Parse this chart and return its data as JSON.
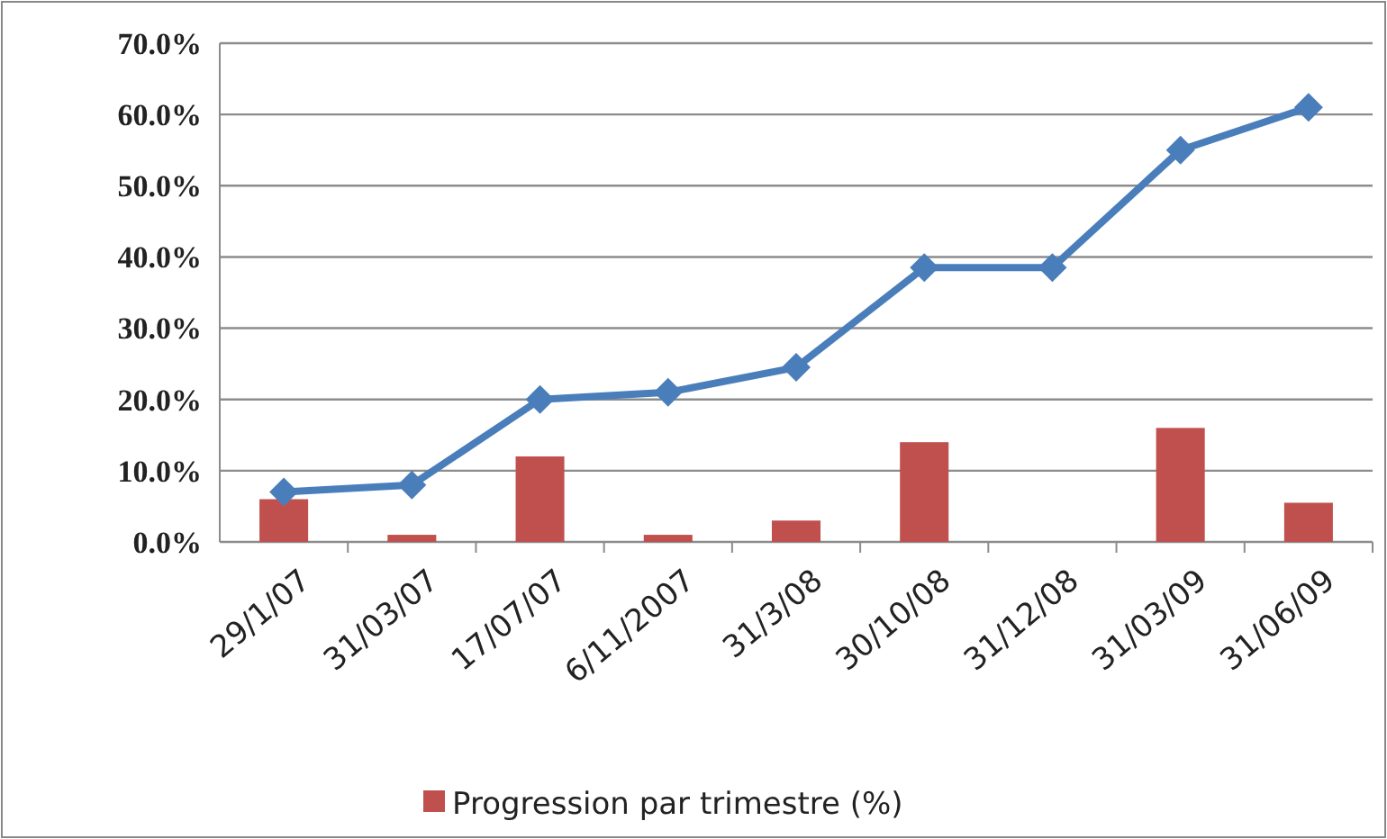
{
  "chart_data": {
    "type": "bar",
    "categories": [
      "29/1/07",
      "31/03/07",
      "17/07/07",
      "6/11/2007",
      "31/3/08",
      "30/10/08",
      "31/12/08",
      "31/03/09",
      "31/06/09"
    ],
    "series": [
      {
        "name": "Progression par trimestre (%)",
        "color": "#c0504d",
        "values": [
          6,
          1,
          12,
          1,
          3,
          14,
          0,
          16,
          5.5
        ]
      },
      {
        "type": "line",
        "color": "#4a7ebb",
        "marker": "diamond",
        "values": [
          7,
          8,
          20,
          21,
          24.5,
          38.5,
          38.5,
          55,
          61
        ]
      }
    ],
    "ylim": [
      0,
      70
    ],
    "yticks": [
      {
        "value": 0,
        "label": "0.0%"
      },
      {
        "value": 10,
        "label": "10.0%"
      },
      {
        "value": 20,
        "label": "20.0%"
      },
      {
        "value": 30,
        "label": "30.0%"
      },
      {
        "value": 40,
        "label": "40.0%"
      },
      {
        "value": 50,
        "label": "50.0%"
      },
      {
        "value": 60,
        "label": "60.0%"
      },
      {
        "value": 70,
        "label": "70.0%"
      }
    ],
    "grid": "y",
    "legend": "bottom"
  }
}
